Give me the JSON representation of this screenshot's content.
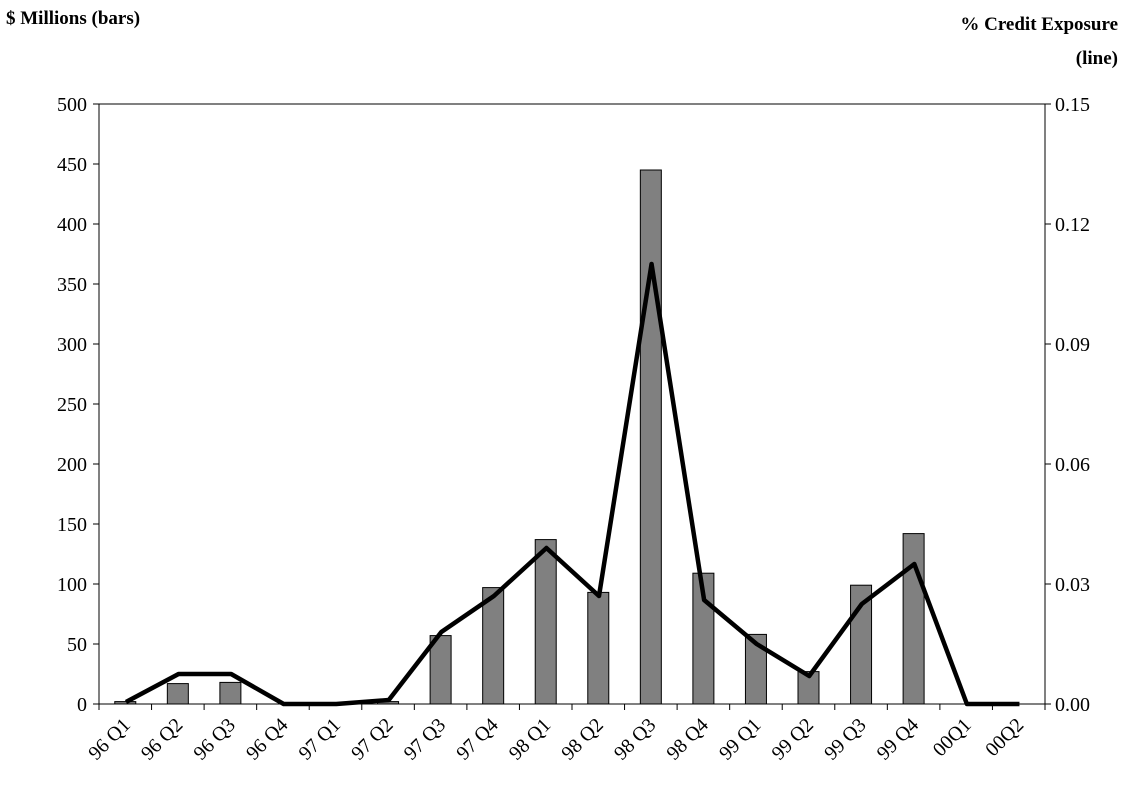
{
  "chart_data": {
    "type": "bar",
    "combo": "bar + line, dual y-axis",
    "categories": [
      "96 Q1",
      "96 Q2",
      "96 Q3",
      "96 Q4",
      "97 Q1",
      "97 Q2",
      "97 Q3",
      "97 Q4",
      "98 Q1",
      "98 Q2",
      "98 Q3",
      "98 Q4",
      "99 Q1",
      "99 Q2",
      "99 Q3",
      "99 Q4",
      "00Q1",
      "00Q2"
    ],
    "series": [
      {
        "name": "$ Millions (bars)",
        "kind": "bar",
        "axis": "left",
        "values": [
          2,
          17,
          18,
          0,
          0,
          2,
          57,
          97,
          137,
          93,
          445,
          109,
          58,
          27,
          99,
          142,
          0,
          0
        ]
      },
      {
        "name": "% Credit Exposure (line)",
        "kind": "line",
        "axis": "right",
        "values": [
          0.0005,
          0.0075,
          0.0075,
          0.0,
          0.0,
          0.001,
          0.018,
          0.027,
          0.039,
          0.027,
          0.11,
          0.026,
          0.015,
          0.007,
          0.025,
          0.035,
          0.0,
          0.0
        ]
      }
    ],
    "left_axis": {
      "title": "$ Millions (bars)",
      "ylim": [
        0,
        500
      ],
      "ticks": [
        0,
        50,
        100,
        150,
        200,
        250,
        300,
        350,
        400,
        450,
        500
      ],
      "tick_labels": [
        "0",
        "50",
        "100",
        "150",
        "200",
        "250",
        "300",
        "350",
        "400",
        "450",
        "500"
      ]
    },
    "right_axis": {
      "title_line1": "% Credit Exposure",
      "title_line2": "(line)",
      "ylim": [
        0,
        0.15
      ],
      "ticks": [
        0,
        0.03,
        0.06,
        0.09,
        0.12,
        0.15
      ],
      "tick_labels": [
        "0.00",
        "0.03",
        "0.06",
        "0.09",
        "0.12",
        "0.15"
      ]
    },
    "grid": false,
    "legend": "none",
    "colors": {
      "bar_fill": "#808080",
      "bar_stroke": "#000000",
      "line": "#000000",
      "axis": "#000000"
    }
  }
}
